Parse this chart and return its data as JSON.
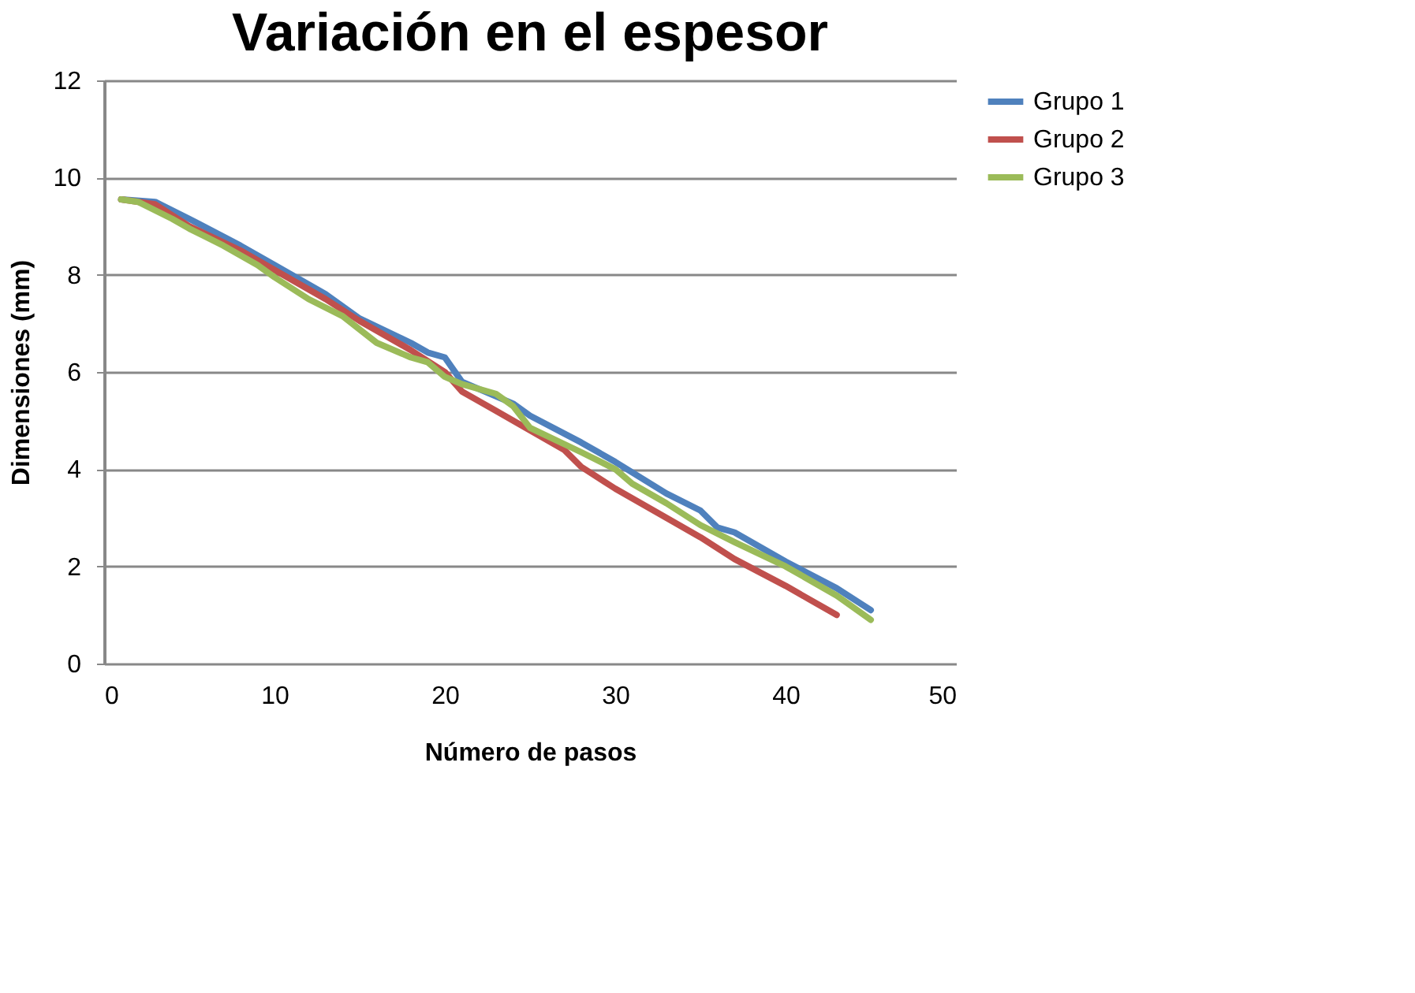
{
  "chart_data": {
    "type": "line",
    "title": "Variación en el espesor",
    "xlabel": "Número de pasos",
    "ylabel": "Dimensiones (mm)",
    "xlim": [
      0,
      50
    ],
    "xticks": [
      0,
      10,
      20,
      30,
      40,
      50
    ],
    "ylim": [
      0,
      12
    ],
    "yticks": [
      0,
      2,
      4,
      6,
      8,
      10,
      12
    ],
    "grid": "y",
    "legend": "right",
    "marker": "none",
    "line_style": "solid",
    "series": [
      {
        "name": "Grupo 1",
        "color": "#4f81bd",
        "x": [
          1,
          3,
          5,
          8,
          10,
          13,
          15,
          18,
          19,
          20,
          21,
          24,
          25,
          28,
          30,
          33,
          35,
          36,
          37,
          40,
          43,
          45
        ],
        "values": [
          9.55,
          9.5,
          9.15,
          8.6,
          8.2,
          7.6,
          7.1,
          6.6,
          6.4,
          6.3,
          5.8,
          5.35,
          5.1,
          4.55,
          4.15,
          3.5,
          3.15,
          2.8,
          2.7,
          2.1,
          1.55,
          1.1
        ]
      },
      {
        "name": "Grupo 2",
        "color": "#c0504d",
        "x": [
          1,
          3,
          5,
          8,
          10,
          13,
          15,
          18,
          20,
          21,
          23,
          25,
          27,
          28,
          30,
          33,
          35,
          37,
          40,
          43
        ],
        "values": [
          9.55,
          9.45,
          9.0,
          8.5,
          8.1,
          7.5,
          7.05,
          6.45,
          6.0,
          5.6,
          5.2,
          4.8,
          4.4,
          4.05,
          3.6,
          3.0,
          2.6,
          2.15,
          1.6,
          1.0
        ]
      },
      {
        "name": "Grupo 3",
        "color": "#9bbb59",
        "x": [
          1,
          2,
          4,
          5,
          7,
          9,
          10,
          12,
          14,
          16,
          18,
          19,
          20,
          21,
          23,
          24,
          25,
          28,
          30,
          31,
          33,
          35,
          37,
          40,
          43,
          45
        ],
        "values": [
          9.55,
          9.5,
          9.15,
          8.95,
          8.6,
          8.2,
          7.95,
          7.5,
          7.15,
          6.6,
          6.3,
          6.2,
          5.9,
          5.75,
          5.55,
          5.3,
          4.85,
          4.35,
          4.0,
          3.7,
          3.3,
          2.85,
          2.5,
          2.0,
          1.4,
          0.9
        ]
      }
    ]
  }
}
